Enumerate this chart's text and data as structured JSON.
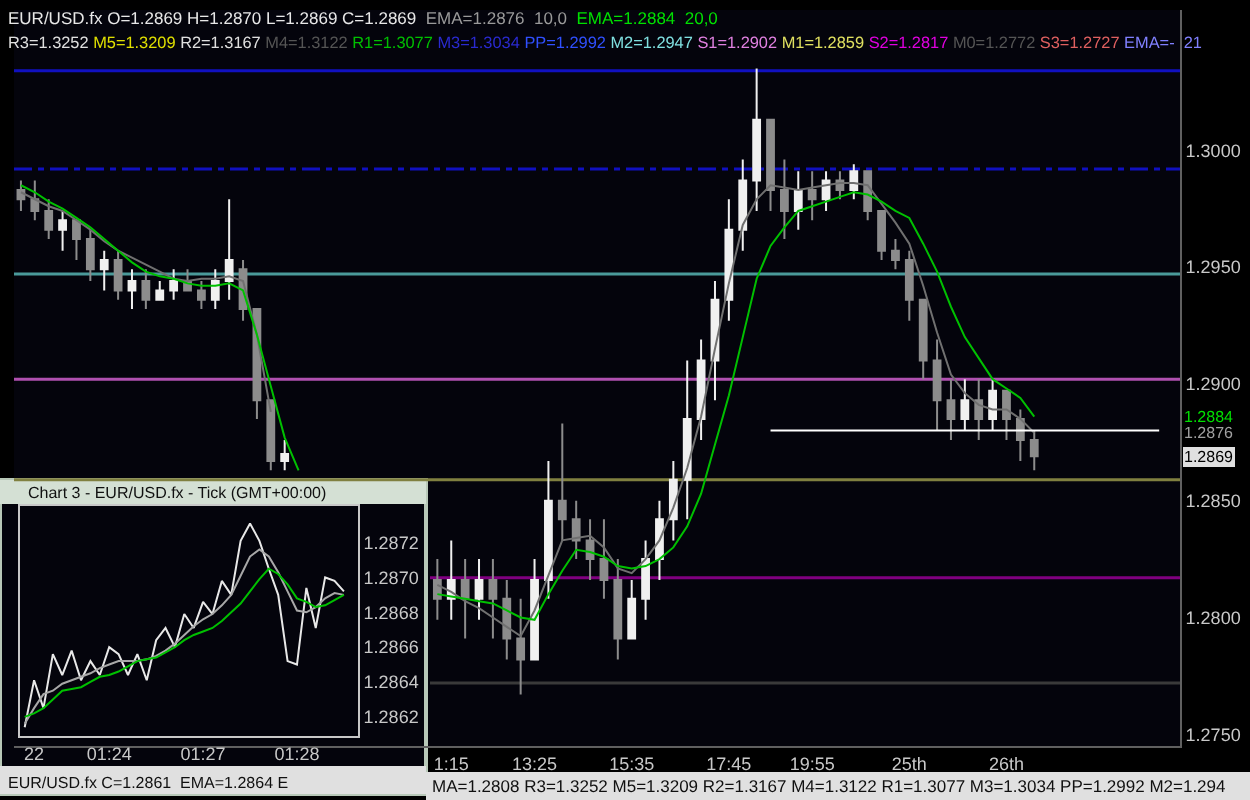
{
  "chart_data": [
    {
      "type": "candlestick",
      "title": "EUR/USD.fx O=1.2869 H=1.2870 L=1.2869 C=1.2869",
      "colors": [
        "#8c8c8c",
        "#8c8c8c",
        "#8c8c8c",
        "#f0f0f0",
        "#8c8c8c",
        "#8c8c8c",
        "#f0f0f0",
        "#8c8c8c",
        "#f0f0f0",
        "#8c8c8c",
        "#f0f0f0",
        "#f0f0f0",
        "#8c8c8c",
        "#8c8c8c",
        "#f0f0f0",
        "#f0f0f0",
        "#8c8c8c",
        "#8c8c8c",
        "#8c8c8c",
        "#f0f0f0",
        null,
        null,
        null,
        null,
        null,
        null,
        null,
        null,
        null,
        null,
        "#8c8c8c",
        "#f0f0f0",
        "#8c8c8c",
        "#f0f0f0",
        "#8c8c8c",
        "#8c8c8c",
        "#8c8c8c",
        "#f0f0f0",
        "#f0f0f0",
        "#8c8c8c",
        "#8c8c8c",
        "#8c8c8c",
        "#8c8c8c",
        "#8c8c8c",
        "#f0f0f0",
        "#f0f0f0",
        "#f0f0f0",
        "#f0f0f0",
        "#f0f0f0",
        "#f0f0f0",
        "#f0f0f0",
        "#f0f0f0",
        "#f0f0f0",
        "#f0f0f0",
        "#8c8c8c",
        "#8c8c8c",
        "#f0f0f0",
        "#8c8c8c",
        "#f0f0f0",
        "#8c8c8c",
        "#f0f0f0",
        "#8c8c8c",
        "#8c8c8c",
        "#8c8c8c",
        "#8c8c8c",
        "#8c8c8c",
        "#8c8c8c",
        "#8c8c8c",
        "#f0f0f0",
        "#8c8c8c",
        "#f0f0f0",
        "#8c8c8c",
        "#8c8c8c",
        "#8c8c8c",
        null,
        null,
        null,
        null,
        null,
        null,
        null,
        null,
        null,
        null
      ],
      "categories": [
        null,
        null,
        null,
        null,
        null,
        null,
        null,
        null,
        null,
        null,
        null,
        null,
        null,
        null,
        null,
        null,
        null,
        null,
        null,
        null,
        null,
        null,
        null,
        null,
        null,
        null,
        null,
        null,
        null,
        null,
        null,
        "1:15",
        null,
        null,
        null,
        null,
        null,
        "13:25",
        null,
        null,
        null,
        null,
        null,
        null,
        "15:35",
        null,
        null,
        null,
        null,
        null,
        null,
        "17:45",
        null,
        null,
        null,
        null,
        null,
        "19:55",
        null,
        null,
        null,
        null,
        null,
        null,
        "25th",
        null,
        null,
        null,
        null,
        null,
        null,
        "26th",
        null,
        null,
        null,
        null,
        null,
        null,
        null,
        null,
        null,
        null,
        null,
        null
      ],
      "ohlc": [
        [
          1.2983,
          1.2987,
          1.2974,
          1.2979
        ],
        [
          1.2979,
          1.2987,
          1.297,
          1.2974
        ],
        [
          1.2974,
          1.2979,
          1.2962,
          1.2966
        ],
        [
          1.2966,
          1.2974,
          1.2957,
          1.297
        ],
        [
          1.297,
          1.297,
          1.2953,
          1.2962
        ],
        [
          1.2962,
          1.2966,
          1.2944,
          1.2949
        ],
        [
          1.2949,
          1.2957,
          1.294,
          1.2953
        ],
        [
          1.2953,
          1.2957,
          1.2936,
          1.294
        ],
        [
          1.294,
          1.2949,
          1.2932,
          1.2944
        ],
        [
          1.2944,
          1.2949,
          1.2932,
          1.2936
        ],
        [
          1.2936,
          1.2944,
          1.2936,
          1.294
        ],
        [
          1.294,
          1.2949,
          1.2936,
          1.2944
        ],
        [
          1.2944,
          1.2949,
          1.294,
          1.294
        ],
        [
          1.294,
          1.2944,
          1.2932,
          1.2936
        ],
        [
          1.2936,
          1.2949,
          1.2932,
          1.2944
        ],
        [
          1.2944,
          1.2979,
          1.2936,
          1.2953
        ],
        [
          1.2949,
          1.2953,
          1.2927,
          1.2932
        ],
        [
          1.2932,
          1.2932,
          1.2885,
          1.2893
        ],
        [
          1.2893,
          1.2893,
          1.2863,
          1.2867
        ],
        [
          1.2867,
          1.2876,
          1.2863,
          1.287
        ],
        null,
        null,
        null,
        null,
        null,
        null,
        null,
        null,
        null,
        null,
        [
          1.2816,
          1.2825,
          1.2799,
          1.2808
        ],
        [
          1.2808,
          1.2833,
          1.2799,
          1.2816
        ],
        [
          1.2816,
          1.2825,
          1.2791,
          1.2808
        ],
        [
          1.2808,
          1.2825,
          1.2799,
          1.2816
        ],
        [
          1.2816,
          1.2825,
          1.2791,
          1.2808
        ],
        [
          1.2808,
          1.2816,
          1.2782,
          1.2791
        ],
        [
          1.2791,
          1.2808,
          1.2767,
          1.2782
        ],
        [
          1.2782,
          1.2825,
          1.2782,
          1.2816
        ],
        [
          1.2816,
          1.2867,
          1.2808,
          1.285
        ],
        [
          1.285,
          1.2883,
          1.2833,
          1.2842
        ],
        [
          1.2842,
          1.285,
          1.2825,
          1.2833
        ],
        [
          1.2833,
          1.2842,
          1.2816,
          1.2825
        ],
        [
          1.2825,
          1.2842,
          1.2808,
          1.2816
        ],
        [
          1.2816,
          1.2825,
          1.2782,
          1.2791
        ],
        [
          1.2791,
          1.2816,
          1.2791,
          1.2808
        ],
        [
          1.2808,
          1.2833,
          1.2799,
          1.2825
        ],
        [
          1.2825,
          1.285,
          1.2816,
          1.2842
        ],
        [
          1.2842,
          1.2867,
          1.2833,
          1.2859
        ],
        [
          1.2859,
          1.291,
          1.2842,
          1.2885
        ],
        [
          1.2885,
          1.2919,
          1.2876,
          1.291
        ],
        [
          1.291,
          1.2944,
          1.2893,
          1.2936
        ],
        [
          1.2936,
          1.2979,
          1.2927,
          1.2966
        ],
        [
          1.2966,
          1.2996,
          1.2957,
          1.2987
        ],
        [
          1.2987,
          1.3035,
          1.2974,
          1.3013
        ],
        [
          1.3013,
          1.3013,
          1.2974,
          1.2983
        ],
        [
          1.2983,
          1.2996,
          1.2962,
          1.2974
        ],
        [
          1.2974,
          1.2991,
          1.2966,
          1.2983
        ],
        [
          1.2983,
          1.2991,
          1.297,
          1.2979
        ],
        [
          1.2979,
          1.2991,
          1.2974,
          1.2987
        ],
        [
          1.2987,
          1.2991,
          1.2979,
          1.2983
        ],
        [
          1.2983,
          1.2994,
          1.2979,
          1.2991
        ],
        [
          1.2991,
          1.2991,
          1.297,
          1.2974
        ],
        [
          1.2974,
          1.2974,
          1.2953,
          1.2957
        ],
        [
          1.2957,
          1.2962,
          1.2949,
          1.2953
        ],
        [
          1.2953,
          1.2957,
          1.2927,
          1.2936
        ],
        [
          1.2936,
          1.2936,
          1.2902,
          1.291
        ],
        [
          1.291,
          1.2919,
          1.288,
          1.2893
        ],
        [
          1.2893,
          1.2902,
          1.2876,
          1.2885
        ],
        [
          1.2885,
          1.2902,
          1.288,
          1.2893
        ],
        [
          1.2893,
          1.2902,
          1.2876,
          1.2885
        ],
        [
          1.2885,
          1.2902,
          1.288,
          1.2897
        ],
        [
          1.2897,
          1.2897,
          1.2876,
          1.2885
        ],
        [
          1.2885,
          1.2889,
          1.2867,
          1.2876
        ],
        [
          1.2876,
          1.288,
          1.2863,
          1.2869
        ],
        null,
        null,
        null,
        null,
        null,
        null,
        null,
        null,
        null,
        null
      ],
      "series": [
        {
          "type": "line",
          "color": "#707070",
          "values": [
            1.2982,
            1.2979,
            1.2976,
            1.2974,
            1.297,
            1.2966,
            1.2961,
            1.2957,
            1.2954,
            1.2951,
            1.2948,
            1.2945,
            1.2944,
            1.2945,
            1.2945,
            1.2946,
            1.2944,
            1.2921,
            1.2888,
            null,
            null,
            null,
            null,
            null,
            null,
            null,
            null,
            null,
            null,
            null,
            1.2814,
            1.2811,
            1.2807,
            1.2804,
            1.28,
            1.2796,
            1.2792,
            1.2803,
            1.2818,
            1.2833,
            1.2834,
            1.2835,
            1.283,
            1.2821,
            1.2819,
            1.2825,
            1.2833,
            1.2847,
            1.2864,
            1.2886,
            1.2915,
            1.2943,
            1.2968,
            1.2979,
            1.2985,
            1.2984,
            1.2983,
            1.2984,
            1.2985,
            1.2986,
            1.2986,
            1.2985,
            1.2977,
            1.2969,
            1.296,
            1.2942,
            1.2922,
            1.2904,
            1.2896,
            1.2891,
            1.2889,
            1.2889,
            1.2885,
            1.2879,
            null,
            null,
            null,
            null,
            null,
            null,
            null,
            null,
            null,
            null
          ]
        },
        {
          "type": "line",
          "color": "#00c000",
          "values": [
            1.2985,
            1.2982,
            1.2978,
            1.2975,
            1.2971,
            1.2967,
            1.2962,
            1.2957,
            1.2952,
            1.2948,
            1.2946,
            1.2945,
            1.2943,
            1.2942,
            1.2942,
            1.2943,
            1.294,
            1.2921,
            1.2899,
            1.2877,
            1.2863,
            null,
            null,
            null,
            null,
            null,
            null,
            null,
            null,
            null,
            1.281,
            1.2809,
            1.2808,
            1.2807,
            1.2806,
            1.2803,
            1.28,
            1.2799,
            1.281,
            1.282,
            1.2829,
            1.2828,
            1.2826,
            1.2822,
            1.2821,
            1.2822,
            1.2825,
            1.283,
            1.2839,
            1.2853,
            1.2874,
            1.2895,
            1.292,
            1.2945,
            1.2959,
            1.2967,
            1.2974,
            1.2976,
            1.2978,
            1.298,
            1.2982,
            1.2981,
            1.2978,
            1.2974,
            1.2971,
            1.296,
            1.2948,
            1.2933,
            1.292,
            1.2911,
            1.2902,
            1.2898,
            1.2894,
            1.2886,
            null,
            null,
            null,
            null,
            null,
            null,
            null,
            null,
            null,
            null
          ]
        },
        {
          "type": "line",
          "color": "#ffffff",
          "values": [
            null,
            null,
            null,
            null,
            null,
            null,
            null,
            null,
            null,
            null,
            null,
            null,
            null,
            null,
            null,
            null,
            null,
            null,
            null,
            null,
            null,
            null,
            null,
            null,
            null,
            null,
            null,
            null,
            null,
            null,
            null,
            null,
            null,
            null,
            null,
            null,
            null,
            null,
            null,
            null,
            null,
            null,
            null,
            null,
            null,
            null,
            null,
            null,
            null,
            null,
            null,
            null,
            null,
            null,
            1.288,
            1.288,
            1.288,
            1.288,
            1.288,
            1.288,
            1.288,
            1.288,
            1.288,
            1.288,
            1.288,
            1.288,
            1.288,
            1.288,
            1.288,
            1.288,
            1.288,
            1.288,
            1.288,
            1.288,
            1.288,
            1.288,
            1.288,
            1.288,
            1.288,
            1.288,
            1.288,
            1.288,
            1.288,
            null
          ]
        }
      ],
      "ylim": [
        1.2745,
        1.306
      ],
      "yticks": [
        {
          "value": 1.275,
          "label": "1.2750"
        },
        {
          "value": 1.28,
          "label": "1.2800"
        },
        {
          "value": 1.285,
          "label": "1.2850"
        },
        {
          "value": 1.29,
          "label": "1.2900"
        },
        {
          "value": 1.295,
          "label": "1.2950"
        },
        {
          "value": 1.3,
          "label": "1.3000"
        }
      ],
      "ref_lines": [
        {
          "axis": "y",
          "value": 1.3034,
          "color": "#1010c0"
        },
        {
          "axis": "y",
          "value": 1.2992,
          "color": "#1010c0",
          "line_style": "dashed"
        },
        {
          "axis": "y",
          "value": 1.2947,
          "color": "#4a9a9a"
        },
        {
          "axis": "y",
          "value": 1.2902,
          "color": "#b050b0"
        },
        {
          "axis": "y",
          "value": 1.2859,
          "color": "#808040"
        },
        {
          "axis": "y",
          "value": 1.2817,
          "color": "#800080"
        },
        {
          "axis": "y",
          "value": 1.2772,
          "color": "#3a3a3a"
        }
      ],
      "grid": false,
      "annotations": [
        "EMA=1.2876  10,0",
        "EMA=1.2884  20,0",
        "R3=1.3252",
        "M5=1.3209",
        "R2=1.3167",
        "M4=1.3122",
        "R1=1.3077",
        "M3=1.3034",
        "PP=1.2992",
        "M2=1.2947",
        "S1=1.2902",
        "M1=1.2859",
        "S2=1.2817",
        "M0=1.2772",
        "S3=1.2727",
        "EMA=-  21",
        "MA=1.2808 R3=1.3252 M5=1.3209 R2=1.3167 M4=1.3122 R1=1.3077 M3=1.3034 PP=1.2992 M2=1.294",
        "1.2884",
        "1.2876",
        "1.2869"
      ]
    },
    {
      "type": "line",
      "title": "Chart 3 - EUR/USD.fx - Tick (GMT+00:00)",
      "categories": [
        null,
        "22",
        null,
        null,
        null,
        null,
        null,
        null,
        null,
        "01:24",
        null,
        null,
        null,
        null,
        null,
        null,
        null,
        null,
        null,
        "01:27",
        null,
        null,
        null,
        null,
        null,
        null,
        null,
        null,
        null,
        "01:28",
        null,
        null,
        null,
        null,
        null,
        null
      ],
      "series": [
        {
          "color": "#e8e8e8",
          "values": [
            1.28614,
            1.28641,
            1.28625,
            1.28656,
            1.28644,
            1.28658,
            1.28641,
            1.28652,
            1.28644,
            1.2866,
            1.28656,
            1.28644,
            1.28656,
            1.28641,
            1.28664,
            1.28671,
            1.2866,
            1.28679,
            1.28671,
            1.28686,
            1.28679,
            1.28698,
            1.2869,
            1.28721,
            1.28731,
            1.28721,
            1.28705,
            1.2869,
            1.28652,
            1.2865,
            1.28694,
            1.28671,
            1.287,
            1.28698,
            1.28692,
            null
          ]
        },
        {
          "color": "#a8a8a8",
          "values": [
            1.28616,
            1.28625,
            1.28633,
            1.28635,
            1.28639,
            1.28641,
            1.28643,
            1.28645,
            1.28648,
            1.2865,
            1.28652,
            1.28652,
            1.28652,
            1.28653,
            1.28655,
            1.28658,
            1.28662,
            1.28667,
            1.28672,
            1.28676,
            1.28679,
            1.28684,
            1.2869,
            1.28701,
            1.28712,
            1.28716,
            1.28712,
            1.28703,
            1.28692,
            1.28681,
            1.2868,
            1.28683,
            1.28688,
            1.28691,
            1.2869,
            null
          ]
        },
        {
          "color": "#00c000",
          "values": [
            1.2862,
            1.28622,
            1.28625,
            1.2863,
            1.28635,
            1.28636,
            1.28637,
            1.2864,
            1.28643,
            1.28644,
            1.28646,
            1.28649,
            1.28652,
            1.28653,
            1.28654,
            1.28657,
            1.2866,
            1.28664,
            1.28667,
            1.28669,
            1.28671,
            1.28675,
            1.2868,
            1.28685,
            1.28692,
            1.28699,
            1.28705,
            1.28702,
            1.28696,
            1.28688,
            1.28686,
            1.28683,
            1.28684,
            1.28687,
            1.2869,
            null
          ]
        }
      ],
      "ylim": [
        1.28609,
        1.28741
      ],
      "yticks": [
        {
          "value": 1.2862,
          "label": "1.2862"
        },
        {
          "value": 1.2864,
          "label": "1.2864"
        },
        {
          "value": 1.2866,
          "label": "1.2866"
        },
        {
          "value": 1.2868,
          "label": "1.2868"
        },
        {
          "value": 1.287,
          "label": "1.2870"
        },
        {
          "value": 1.2872,
          "label": "1.2872"
        }
      ],
      "grid": false,
      "annotations": [
        "EUR/USD.fx C=1.2861  EMA=1.2864 E"
      ]
    }
  ]
}
